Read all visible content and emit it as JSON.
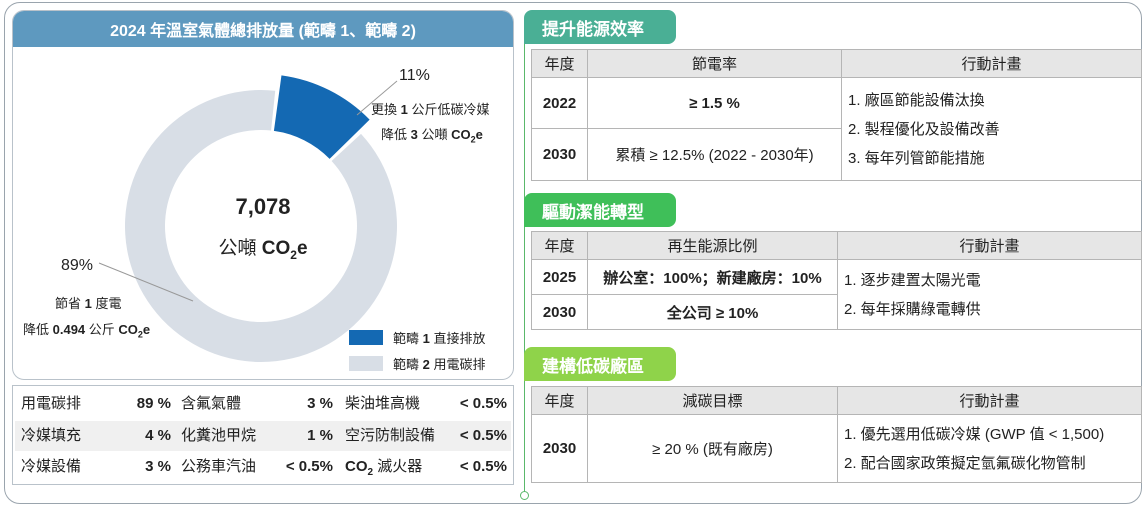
{
  "donut": {
    "title": "2024 年溫室氣體總排放量 (範疇 1、範疇 2)",
    "center_value": "7,078",
    "center_unit_prefix": "公噸 ",
    "center_unit_gas": "CO",
    "center_unit_sub": "2",
    "center_unit_e": "e",
    "scope1": {
      "pct_label": "11%",
      "line1_pre": "更換 ",
      "line1_num": "1",
      "line1_post": " 公斤低碳冷媒",
      "line2_pre": "降低 ",
      "line2_num": "3",
      "line2_post": " 公噸 ",
      "gas": "CO",
      "gas_sub": "2",
      "gas_e": "e"
    },
    "scope2": {
      "pct_label": "89%",
      "line1_pre": "節省 ",
      "line1_num": "1",
      "line1_post": " 度電",
      "line2_pre": "降低 ",
      "line2_num": "0.494",
      "line2_post": " 公斤 ",
      "gas": "CO",
      "gas_sub": "2",
      "gas_e": "e"
    },
    "legend": [
      {
        "pre": "範疇 ",
        "num": "1",
        "post": " 直接排放",
        "color": "#1469b3"
      },
      {
        "pre": "範疇 ",
        "num": "2",
        "post": " 用電碳排",
        "color": "#d8dee6"
      }
    ]
  },
  "chart_data": {
    "type": "pie",
    "title": "2024 年溫室氣體總排放量 (範疇 1、範疇 2)",
    "total": 7078,
    "total_unit": "公噸 CO2e",
    "categories": [
      "範疇 1 直接排放",
      "範疇 2 用電碳排"
    ],
    "values": [
      11,
      89
    ],
    "colors": [
      "#1469b3",
      "#d8dee6"
    ],
    "legend_position": "bottom-right"
  },
  "emissions": {
    "rows": [
      [
        {
          "label": "用電碳排",
          "value": "89 %"
        },
        {
          "label": "含氟氣體",
          "value": "3 %"
        },
        {
          "label": "柴油堆高機",
          "value": "< 0.5%"
        }
      ],
      [
        {
          "label": "冷媒填充",
          "value": "4 %"
        },
        {
          "label": "化糞池甲烷",
          "value": "1 %"
        },
        {
          "label": "空污防制設備",
          "value": "< 0.5%"
        }
      ],
      [
        {
          "label": "冷媒設備",
          "value": "3 %"
        },
        {
          "label": "公務車汽油",
          "value": "< 0.5%"
        },
        {
          "label": "滅火器",
          "value": "< 0.5%",
          "gas": "CO",
          "gas_sub": "2"
        }
      ]
    ]
  },
  "sections": [
    {
      "title": "提升能源效率",
      "headers": [
        "年度",
        "節電率",
        "行動計畫"
      ],
      "rows": [
        {
          "year": "2022",
          "target": "≥ 1.5 %"
        },
        {
          "year": "2030",
          "target": "累積 ≥ 12.5% (2022 - 2030年)"
        }
      ],
      "plans": [
        "1. 廠區節能設備汰換",
        "2. 製程優化及設備改善",
        "3. 每年列管節能措施"
      ]
    },
    {
      "title": "驅動潔能轉型",
      "headers": [
        "年度",
        "再生能源比例",
        "行動計畫"
      ],
      "rows": [
        {
          "year": "2025",
          "target": "辦公室：100%；新建廠房：10%"
        },
        {
          "year": "2030",
          "target": "全公司 ≥ 10%"
        }
      ],
      "plans": [
        "1. 逐步建置太陽光電",
        "2. 每年採購綠電轉供"
      ]
    },
    {
      "title": "建構低碳廠區",
      "headers": [
        "年度",
        "減碳目標",
        "行動計畫"
      ],
      "rows": [
        {
          "year": "2030",
          "target": "≥ 20 % (既有廠房)"
        }
      ],
      "plans": [
        "1. 優先選用低碳冷媒 (GWP 值 < 1,500)",
        "2. 配合國家政策擬定氫氟碳化物管制"
      ]
    }
  ]
}
